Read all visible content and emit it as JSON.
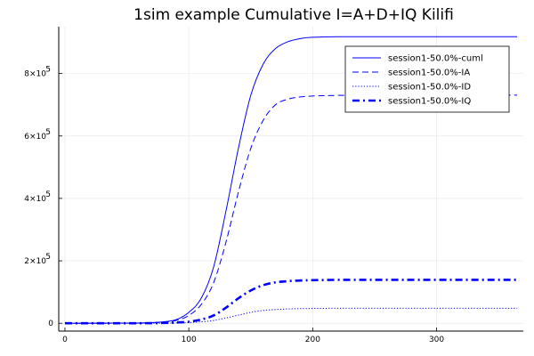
{
  "chart_data": {
    "type": "line",
    "title": "1sim example Cumulative I=A+D+IQ Kilifi",
    "xlabel": "",
    "ylabel": "",
    "xlim": [
      -5,
      370
    ],
    "ylim": [
      -25000,
      950000
    ],
    "grid": true,
    "legend_position": "top-right",
    "x_ticks": [
      {
        "value": 0,
        "label": "0"
      },
      {
        "value": 100,
        "label": "100"
      },
      {
        "value": 200,
        "label": "200"
      },
      {
        "value": 300,
        "label": "300"
      }
    ],
    "y_ticks": [
      {
        "value": 0,
        "label": "0",
        "exp": ""
      },
      {
        "value": 200000,
        "label": "2×10",
        "exp": "5"
      },
      {
        "value": 400000,
        "label": "4×10",
        "exp": "5"
      },
      {
        "value": 600000,
        "label": "6×10",
        "exp": "5"
      },
      {
        "value": 800000,
        "label": "8×10",
        "exp": "5"
      }
    ],
    "series": [
      {
        "name": "session1-50.0%-cuml",
        "color": "#0000ff",
        "style": "solid",
        "x": [
          0,
          60,
          80,
          90,
          100,
          110,
          120,
          130,
          140,
          150,
          160,
          170,
          180,
          190,
          200,
          220,
          250,
          300,
          365
        ],
        "values": [
          0,
          1000,
          5000,
          12000,
          35000,
          80000,
          180000,
          360000,
          560000,
          730000,
          830000,
          880000,
          902000,
          912000,
          916000,
          918000,
          918000,
          918000,
          918000
        ]
      },
      {
        "name": "session1-50.0%-IA",
        "color": "#0000ff",
        "style": "dashed",
        "x": [
          0,
          60,
          80,
          90,
          100,
          110,
          120,
          130,
          140,
          150,
          160,
          170,
          180,
          190,
          200,
          220,
          250,
          300,
          365
        ],
        "values": [
          0,
          800,
          4000,
          9000,
          25000,
          60000,
          130000,
          260000,
          420000,
          560000,
          650000,
          700000,
          718000,
          725000,
          728000,
          730000,
          731000,
          731000,
          731000
        ]
      },
      {
        "name": "session1-50.0%-ID",
        "color": "#0000ff",
        "style": "dotted",
        "x": [
          0,
          60,
          80,
          90,
          100,
          110,
          120,
          130,
          140,
          150,
          160,
          170,
          180,
          190,
          200,
          220,
          250,
          300,
          365
        ],
        "values": [
          0,
          100,
          400,
          900,
          2000,
          4500,
          9000,
          17000,
          26000,
          35000,
          41000,
          44000,
          46000,
          47000,
          47500,
          48000,
          48000,
          48000,
          48000
        ]
      },
      {
        "name": "session1-50.0%-IQ",
        "color": "#0000ff",
        "style": "dashdot",
        "x": [
          0,
          60,
          80,
          90,
          100,
          110,
          120,
          130,
          140,
          150,
          160,
          170,
          180,
          190,
          200,
          220,
          250,
          300,
          365
        ],
        "values": [
          0,
          200,
          1000,
          2500,
          5000,
          12000,
          25000,
          50000,
          80000,
          105000,
          122000,
          131000,
          135000,
          137000,
          138000,
          139000,
          139000,
          139000,
          139000
        ]
      }
    ]
  }
}
